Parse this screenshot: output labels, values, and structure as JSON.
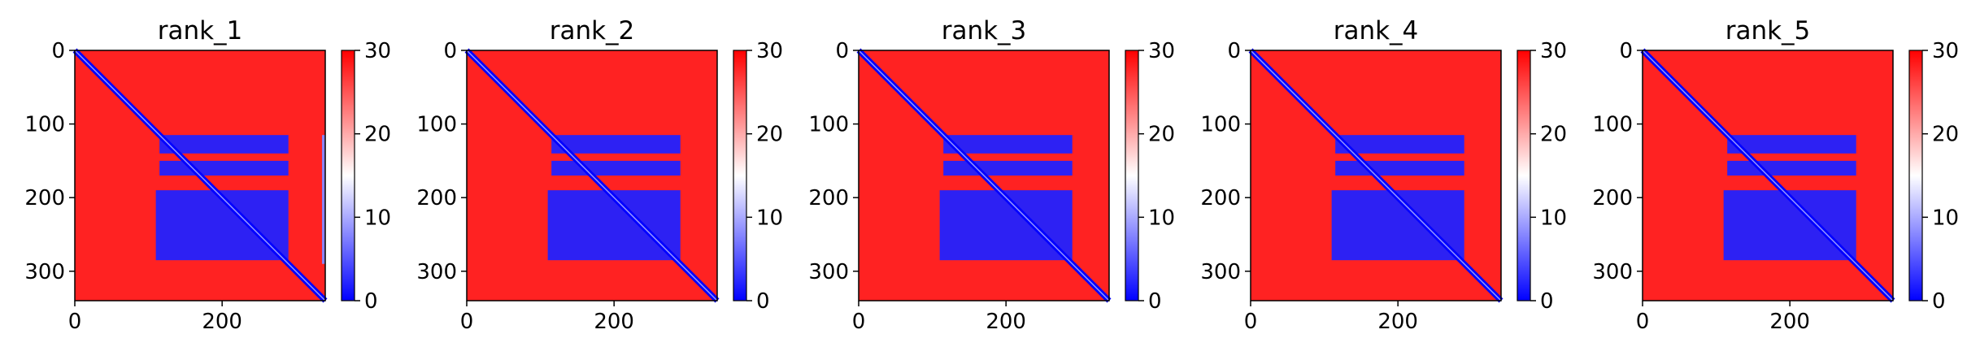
{
  "chart_data": [
    {
      "type": "heatmap",
      "title": "rank_1",
      "x_ticks": [
        0,
        200
      ],
      "y_ticks": [
        0,
        100,
        200,
        300
      ],
      "xlim": [
        0,
        340
      ],
      "ylim": [
        340,
        0
      ],
      "colorbar": {
        "ticks": [
          0,
          10,
          20,
          30
        ],
        "range": [
          0,
          30
        ],
        "colormap": "bwr"
      },
      "matrix_features": {
        "size": 340,
        "diagonal_value": 0,
        "background_value": 28,
        "blocks": [
          {
            "rows": [
              115,
              140
            ],
            "cols": [
              115,
              290
            ],
            "value": 2
          },
          {
            "rows": [
              150,
              170
            ],
            "cols": [
              115,
              290
            ],
            "value": 2
          },
          {
            "rows": [
              190,
              285
            ],
            "cols": [
              110,
              290
            ],
            "value": 2
          },
          {
            "rows": [
              115,
              290
            ],
            "cols": [
              340,
              340
            ],
            "value": 8
          }
        ]
      }
    },
    {
      "type": "heatmap",
      "title": "rank_2",
      "x_ticks": [
        0,
        200
      ],
      "y_ticks": [
        0,
        100,
        200,
        300
      ],
      "xlim": [
        0,
        340
      ],
      "ylim": [
        340,
        0
      ],
      "colorbar": {
        "ticks": [
          0,
          10,
          20,
          30
        ],
        "range": [
          0,
          30
        ],
        "colormap": "bwr"
      },
      "matrix_features": {
        "size": 340,
        "diagonal_value": 0,
        "background_value": 28,
        "blocks": [
          {
            "rows": [
              115,
              140
            ],
            "cols": [
              115,
              290
            ],
            "value": 2
          },
          {
            "rows": [
              150,
              170
            ],
            "cols": [
              115,
              290
            ],
            "value": 2
          },
          {
            "rows": [
              190,
              285
            ],
            "cols": [
              110,
              290
            ],
            "value": 2
          }
        ]
      }
    },
    {
      "type": "heatmap",
      "title": "rank_3",
      "x_ticks": [
        0,
        200
      ],
      "y_ticks": [
        0,
        100,
        200,
        300
      ],
      "xlim": [
        0,
        340
      ],
      "ylim": [
        340,
        0
      ],
      "colorbar": {
        "ticks": [
          0,
          10,
          20,
          30
        ],
        "range": [
          0,
          30
        ],
        "colormap": "bwr"
      },
      "matrix_features": {
        "size": 340,
        "diagonal_value": 0,
        "background_value": 28,
        "blocks": [
          {
            "rows": [
              115,
              140
            ],
            "cols": [
              115,
              290
            ],
            "value": 2
          },
          {
            "rows": [
              150,
              170
            ],
            "cols": [
              115,
              290
            ],
            "value": 2
          },
          {
            "rows": [
              190,
              285
            ],
            "cols": [
              110,
              290
            ],
            "value": 2
          }
        ]
      }
    },
    {
      "type": "heatmap",
      "title": "rank_4",
      "x_ticks": [
        0,
        200
      ],
      "y_ticks": [
        0,
        100,
        200,
        300
      ],
      "xlim": [
        0,
        340
      ],
      "ylim": [
        340,
        0
      ],
      "colorbar": {
        "ticks": [
          0,
          10,
          20,
          30
        ],
        "range": [
          0,
          30
        ],
        "colormap": "bwr"
      },
      "matrix_features": {
        "size": 340,
        "diagonal_value": 0,
        "background_value": 28,
        "blocks": [
          {
            "rows": [
              115,
              140
            ],
            "cols": [
              115,
              290
            ],
            "value": 2
          },
          {
            "rows": [
              150,
              170
            ],
            "cols": [
              115,
              290
            ],
            "value": 2
          },
          {
            "rows": [
              190,
              285
            ],
            "cols": [
              110,
              290
            ],
            "value": 2
          }
        ]
      }
    },
    {
      "type": "heatmap",
      "title": "rank_5",
      "x_ticks": [
        0,
        200
      ],
      "y_ticks": [
        0,
        100,
        200,
        300
      ],
      "xlim": [
        0,
        340
      ],
      "ylim": [
        340,
        0
      ],
      "colorbar": {
        "ticks": [
          0,
          10,
          20,
          30
        ],
        "range": [
          0,
          30
        ],
        "colormap": "bwr"
      },
      "matrix_features": {
        "size": 340,
        "diagonal_value": 0,
        "background_value": 28,
        "blocks": [
          {
            "rows": [
              115,
              140
            ],
            "cols": [
              115,
              290
            ],
            "value": 2
          },
          {
            "rows": [
              150,
              170
            ],
            "cols": [
              115,
              290
            ],
            "value": 2
          },
          {
            "rows": [
              190,
              285
            ],
            "cols": [
              110,
              290
            ],
            "value": 2
          }
        ]
      }
    }
  ],
  "colors": {
    "high": "#ff0000",
    "mid": "#ffffff",
    "low": "#0000ff"
  }
}
